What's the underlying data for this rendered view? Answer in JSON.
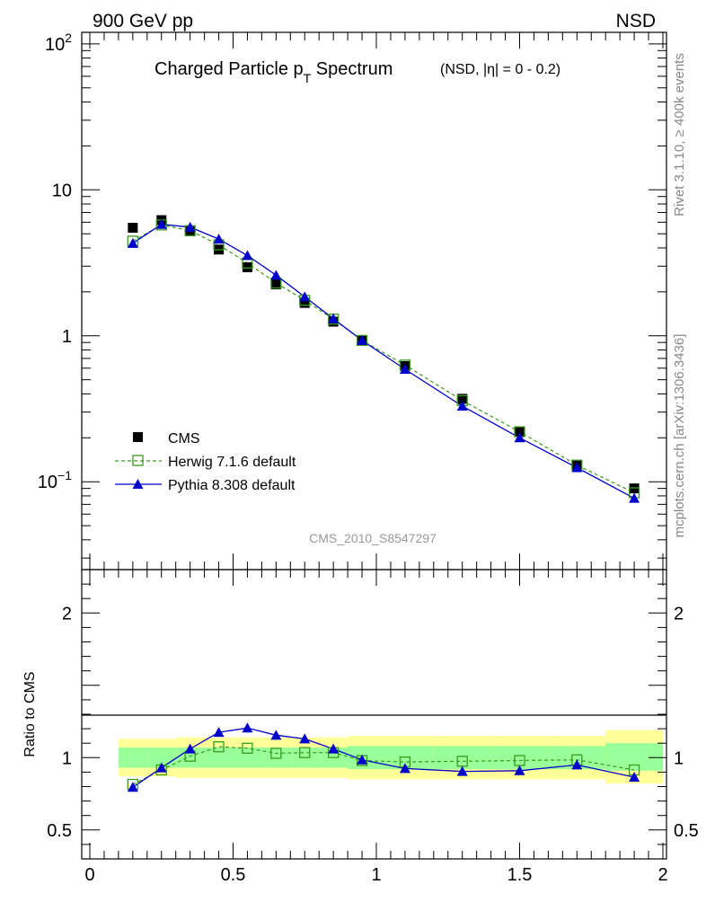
{
  "header": {
    "left": "900 GeV pp",
    "right": "NSD"
  },
  "title": {
    "main": "Charged Particle p",
    "sub": "T",
    "main2": " Spectrum",
    "suffix": "(NSD, |η| =   0 - 0.2)"
  },
  "side": {
    "rivet": "Rivet 3.1.10, ≥ 400k events",
    "mcplots": "mcplots.cern.ch [arXiv:1306.3436]"
  },
  "analysis_id": "CMS_2010_S8547297",
  "legend": {
    "cms": "CMS",
    "herwig": "Herwig 7.1.6 default",
    "pythia": "Pythia 8.308 default"
  },
  "colors": {
    "cms": "#000000",
    "herwig": "#3a9a1e",
    "pythia": "#0000cc",
    "band_inner": "#99ff99",
    "band_outer": "#ffff99"
  },
  "chart_data": [
    {
      "type": "scatter",
      "log_y": true,
      "xlim": [
        0,
        2
      ],
      "ylim": [
        0.025,
        120
      ],
      "y_ticks": [
        {
          "label": "10",
          "sup": "2",
          "value": 100
        },
        {
          "label": "10",
          "sup": "",
          "value": 10
        },
        {
          "label": "1",
          "sup": "",
          "value": 1
        },
        {
          "label": "10",
          "sup": "−1",
          "value": 0.1
        }
      ],
      "x": [
        0.15,
        0.25,
        0.35,
        0.45,
        0.55,
        0.65,
        0.75,
        0.85,
        0.95,
        1.1,
        1.3,
        1.5,
        1.7,
        1.9
      ],
      "series": [
        {
          "name": "CMS",
          "values": [
            5.5,
            6.2,
            5.2,
            3.9,
            2.95,
            2.25,
            1.68,
            1.25,
            0.93,
            0.62,
            0.37,
            0.22,
            0.13,
            0.09
          ]
        },
        {
          "name": "Herwig 7.1.6 default",
          "values": [
            4.45,
            5.75,
            5.25,
            4.2,
            3.15,
            2.3,
            1.75,
            1.3,
            0.93,
            0.63,
            0.36,
            0.22,
            0.13,
            0.084
          ]
        },
        {
          "name": "Pythia 8.308 default",
          "values": [
            4.3,
            5.8,
            5.55,
            4.6,
            3.55,
            2.6,
            1.85,
            1.31,
            0.93,
            0.59,
            0.33,
            0.2,
            0.125,
            0.077
          ]
        }
      ]
    },
    {
      "type": "line",
      "ylabel": "Ratio to CMS",
      "xlim": [
        0,
        2
      ],
      "ylim": [
        0.3,
        2.3
      ],
      "x_ticks": [
        "0",
        "0.5",
        "1",
        "1.5",
        "2"
      ],
      "y_ticks": [
        "2",
        "1",
        "0.5"
      ],
      "bands": [
        {
          "x0": 0.1,
          "x1": 0.2,
          "inner": [
            0.93,
            1.07
          ],
          "outer": [
            0.87,
            1.13
          ]
        },
        {
          "x0": 0.2,
          "x1": 0.3,
          "inner": [
            0.93,
            1.07
          ],
          "outer": [
            0.87,
            1.13
          ]
        },
        {
          "x0": 0.3,
          "x1": 0.4,
          "inner": [
            0.93,
            1.07
          ],
          "outer": [
            0.86,
            1.14
          ]
        },
        {
          "x0": 0.4,
          "x1": 0.5,
          "inner": [
            0.93,
            1.07
          ],
          "outer": [
            0.86,
            1.14
          ]
        },
        {
          "x0": 0.5,
          "x1": 0.6,
          "inner": [
            0.93,
            1.07
          ],
          "outer": [
            0.86,
            1.14
          ]
        },
        {
          "x0": 0.6,
          "x1": 0.7,
          "inner": [
            0.93,
            1.07
          ],
          "outer": [
            0.86,
            1.14
          ]
        },
        {
          "x0": 0.7,
          "x1": 0.8,
          "inner": [
            0.93,
            1.07
          ],
          "outer": [
            0.86,
            1.14
          ]
        },
        {
          "x0": 0.8,
          "x1": 0.9,
          "inner": [
            0.93,
            1.07
          ],
          "outer": [
            0.86,
            1.14
          ]
        },
        {
          "x0": 0.9,
          "x1": 1.0,
          "inner": [
            0.92,
            1.08
          ],
          "outer": [
            0.85,
            1.15
          ]
        },
        {
          "x0": 1.0,
          "x1": 1.2,
          "inner": [
            0.92,
            1.08
          ],
          "outer": [
            0.85,
            1.15
          ]
        },
        {
          "x0": 1.2,
          "x1": 1.4,
          "inner": [
            0.92,
            1.08
          ],
          "outer": [
            0.85,
            1.15
          ]
        },
        {
          "x0": 1.4,
          "x1": 1.6,
          "inner": [
            0.92,
            1.08
          ],
          "outer": [
            0.85,
            1.15
          ]
        },
        {
          "x0": 1.6,
          "x1": 1.8,
          "inner": [
            0.92,
            1.08
          ],
          "outer": [
            0.85,
            1.15
          ]
        },
        {
          "x0": 1.8,
          "x1": 2.0,
          "inner": [
            0.91,
            1.1
          ],
          "outer": [
            0.82,
            1.19
          ]
        }
      ],
      "x": [
        0.15,
        0.25,
        0.35,
        0.45,
        0.55,
        0.65,
        0.75,
        0.85,
        0.95,
        1.1,
        1.3,
        1.5,
        1.7,
        1.9
      ],
      "series": [
        {
          "name": "Herwig 7.1.6 default",
          "values": [
            0.815,
            0.915,
            1.01,
            1.075,
            1.065,
            1.03,
            1.035,
            1.035,
            0.98,
            0.97,
            0.975,
            0.98,
            0.985,
            0.915
          ]
        },
        {
          "name": "Pythia 8.308 default",
          "values": [
            0.795,
            0.93,
            1.06,
            1.175,
            1.205,
            1.155,
            1.13,
            1.06,
            0.985,
            0.925,
            0.905,
            0.91,
            0.95,
            0.865
          ]
        }
      ]
    }
  ]
}
